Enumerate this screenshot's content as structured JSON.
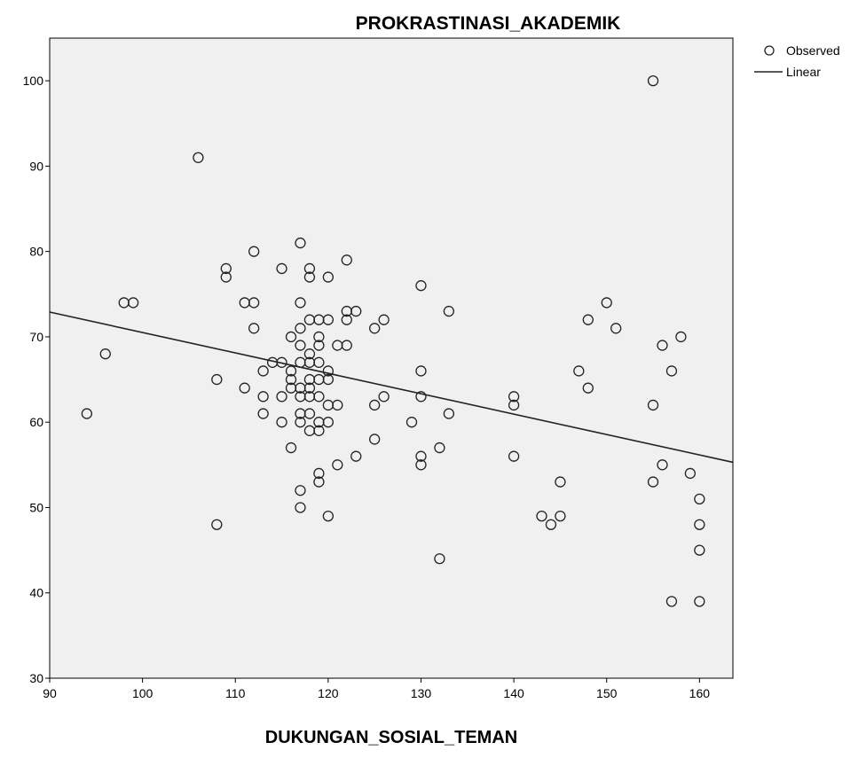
{
  "chart_data": {
    "type": "scatter",
    "title": "PROKRASTINASI_AKADEMIK",
    "xlabel": "DUKUNGAN_SOSIAL_TEMAN",
    "ylabel": "",
    "xlim": [
      90,
      163.6
    ],
    "ylim": [
      30,
      105
    ],
    "xticks": [
      90,
      100,
      110,
      120,
      130,
      140,
      150,
      160
    ],
    "yticks": [
      30,
      40,
      50,
      60,
      70,
      80,
      90,
      100
    ],
    "grid": false,
    "legend": {
      "position": "top-right",
      "items": [
        "Observed",
        "Linear"
      ]
    },
    "colors": {
      "plot_bg": "#f0f0f0",
      "marker": "#222222",
      "line": "#222222"
    },
    "series": [
      {
        "name": "Observed",
        "kind": "scatter",
        "points": [
          [
            94,
            61
          ],
          [
            96,
            68
          ],
          [
            98,
            74
          ],
          [
            99,
            74
          ],
          [
            106,
            91
          ],
          [
            108,
            65
          ],
          [
            108,
            48
          ],
          [
            109,
            78
          ],
          [
            109,
            77
          ],
          [
            111,
            74
          ],
          [
            111,
            64
          ],
          [
            112,
            80
          ],
          [
            112,
            74
          ],
          [
            112,
            71
          ],
          [
            113,
            66
          ],
          [
            113,
            63
          ],
          [
            113,
            61
          ],
          [
            114,
            67
          ],
          [
            115,
            67
          ],
          [
            115,
            63
          ],
          [
            115,
            60
          ],
          [
            115,
            78
          ],
          [
            116,
            70
          ],
          [
            116,
            66
          ],
          [
            116,
            65
          ],
          [
            116,
            64
          ],
          [
            116,
            57
          ],
          [
            117,
            81
          ],
          [
            117,
            74
          ],
          [
            117,
            71
          ],
          [
            117,
            69
          ],
          [
            117,
            67
          ],
          [
            117,
            64
          ],
          [
            117,
            63
          ],
          [
            117,
            61
          ],
          [
            117,
            60
          ],
          [
            117,
            52
          ],
          [
            117,
            50
          ],
          [
            118,
            78
          ],
          [
            118,
            77
          ],
          [
            118,
            72
          ],
          [
            118,
            68
          ],
          [
            118,
            67
          ],
          [
            118,
            65
          ],
          [
            118,
            64
          ],
          [
            118,
            63
          ],
          [
            118,
            61
          ],
          [
            118,
            59
          ],
          [
            119,
            72
          ],
          [
            119,
            70
          ],
          [
            119,
            69
          ],
          [
            119,
            67
          ],
          [
            119,
            65
          ],
          [
            119,
            63
          ],
          [
            119,
            60
          ],
          [
            119,
            59
          ],
          [
            119,
            54
          ],
          [
            119,
            53
          ],
          [
            120,
            77
          ],
          [
            120,
            72
          ],
          [
            120,
            66
          ],
          [
            120,
            65
          ],
          [
            120,
            62
          ],
          [
            120,
            60
          ],
          [
            120,
            49
          ],
          [
            121,
            69
          ],
          [
            121,
            62
          ],
          [
            121,
            55
          ],
          [
            122,
            79
          ],
          [
            122,
            73
          ],
          [
            122,
            72
          ],
          [
            122,
            69
          ],
          [
            123,
            73
          ],
          [
            123,
            56
          ],
          [
            125,
            71
          ],
          [
            125,
            62
          ],
          [
            125,
            58
          ],
          [
            126,
            72
          ],
          [
            126,
            63
          ],
          [
            129,
            60
          ],
          [
            130,
            76
          ],
          [
            130,
            66
          ],
          [
            130,
            63
          ],
          [
            130,
            56
          ],
          [
            130,
            55
          ],
          [
            132,
            57
          ],
          [
            132,
            44
          ],
          [
            133,
            73
          ],
          [
            133,
            61
          ],
          [
            140,
            63
          ],
          [
            140,
            62
          ],
          [
            140,
            56
          ],
          [
            143,
            49
          ],
          [
            144,
            48
          ],
          [
            145,
            53
          ],
          [
            145,
            49
          ],
          [
            147,
            66
          ],
          [
            148,
            72
          ],
          [
            148,
            64
          ],
          [
            150,
            74
          ],
          [
            151,
            71
          ],
          [
            155,
            100
          ],
          [
            155,
            62
          ],
          [
            155,
            53
          ],
          [
            156,
            69
          ],
          [
            156,
            55
          ],
          [
            157,
            66
          ],
          [
            157,
            39
          ],
          [
            158,
            70
          ],
          [
            159,
            54
          ],
          [
            160,
            51
          ],
          [
            160,
            48
          ],
          [
            160,
            45
          ],
          [
            160,
            39
          ]
        ]
      },
      {
        "name": "Linear",
        "kind": "line",
        "points": [
          [
            90,
            72.9
          ],
          [
            163.6,
            55.3
          ]
        ]
      }
    ]
  }
}
